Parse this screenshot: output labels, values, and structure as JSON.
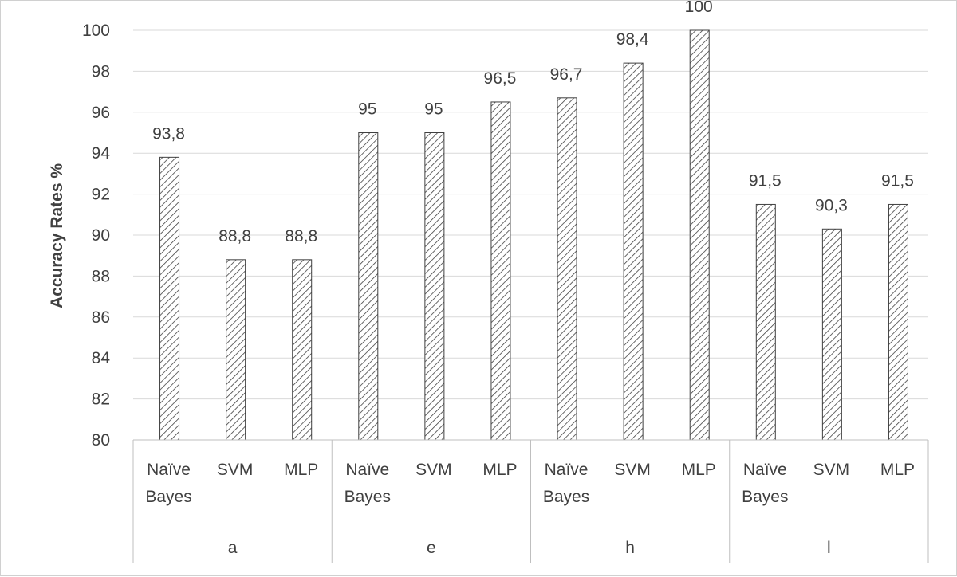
{
  "chart_data": {
    "type": "bar",
    "ylabel": "Accuracy Rates %",
    "xlabel": "",
    "ylim": [
      80,
      100
    ],
    "yticks": [
      80,
      82,
      84,
      86,
      88,
      90,
      92,
      94,
      96,
      98,
      100
    ],
    "grid": true,
    "groups": [
      {
        "name": "a",
        "bars": [
          {
            "category": [
              "Naïve",
              "Bayes"
            ],
            "value": 93.8,
            "label": "93,8"
          },
          {
            "category": [
              "SVM"
            ],
            "value": 88.8,
            "label": "88,8"
          },
          {
            "category": [
              "MLP"
            ],
            "value": 88.8,
            "label": "88,8"
          }
        ]
      },
      {
        "name": "e",
        "bars": [
          {
            "category": [
              "Naïve",
              "Bayes"
            ],
            "value": 95,
            "label": "95"
          },
          {
            "category": [
              "SVM"
            ],
            "value": 95,
            "label": "95"
          },
          {
            "category": [
              "MLP"
            ],
            "value": 96.5,
            "label": "96,5"
          }
        ]
      },
      {
        "name": "h",
        "bars": [
          {
            "category": [
              "Naïve",
              "Bayes"
            ],
            "value": 96.7,
            "label": "96,7"
          },
          {
            "category": [
              "SVM"
            ],
            "value": 98.4,
            "label": "98,4"
          },
          {
            "category": [
              "MLP"
            ],
            "value": 100,
            "label": "100"
          }
        ]
      },
      {
        "name": "l",
        "bars": [
          {
            "category": [
              "Naïve",
              "Bayes"
            ],
            "value": 91.5,
            "label": "91,5"
          },
          {
            "category": [
              "SVM"
            ],
            "value": 90.3,
            "label": "90,3"
          },
          {
            "category": [
              "MLP"
            ],
            "value": 91.5,
            "label": "91,5"
          }
        ]
      }
    ],
    "colors": {
      "bar_fill": "#ffffff",
      "bar_hatch": "#404040",
      "grid": "#d9d9d9",
      "axis": "#bfbfbf",
      "text": "#404040"
    }
  }
}
